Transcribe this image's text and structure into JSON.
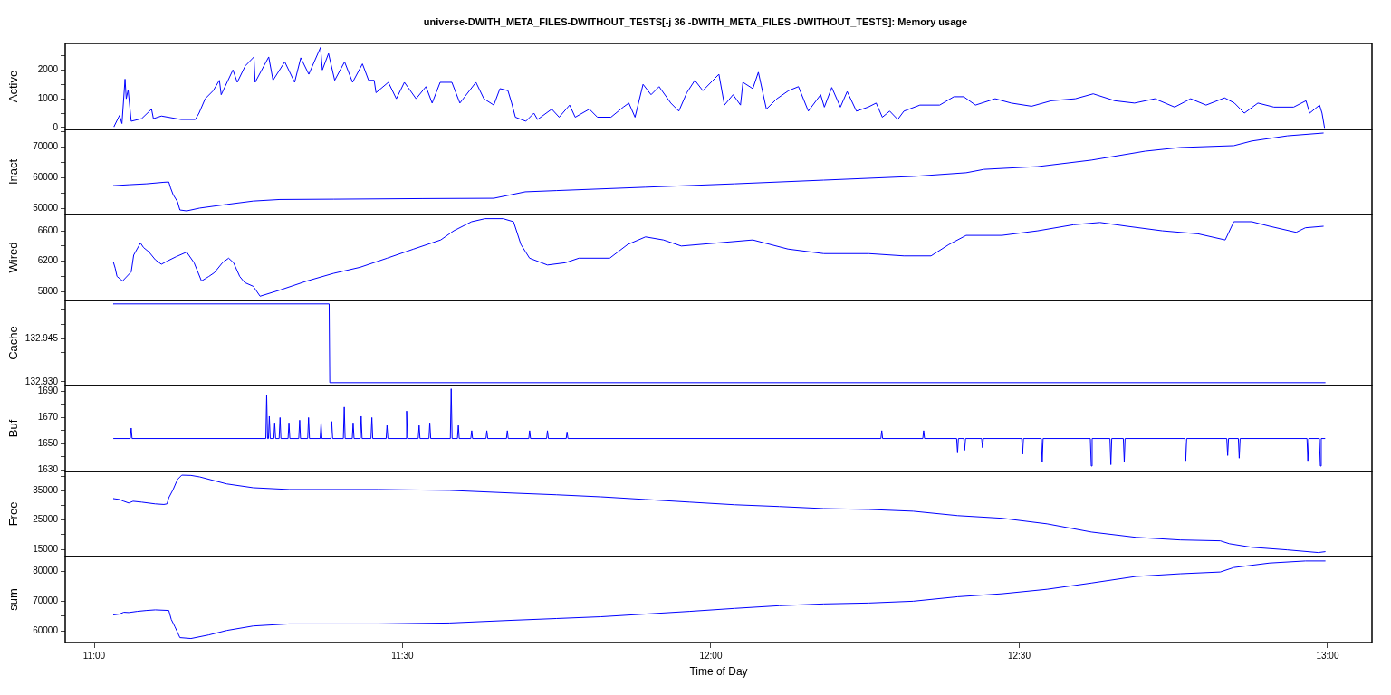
{
  "chart_data": [
    {
      "type": "line",
      "title": "universe-DWITH_META_FILES-DWITHOUT_TESTS[-j 36 -DWITH_META_FILES -DWITHOUT_TESTS]: Memory usage",
      "ylabel": "Active",
      "color": "#0000ff",
      "xlim": [
        10.953,
        13.072
      ],
      "ylim": [
        -64,
        2920
      ],
      "yticks": [
        0,
        {
          "value": 500,
          "label": null
        },
        1000,
        {
          "value": 1500,
          "label": null
        },
        2000,
        {
          "value": 2500,
          "label": null
        }
      ],
      "tick_labels": "y",
      "x": [
        11.032,
        11.041,
        11.045,
        11.05,
        11.052,
        11.055,
        11.06,
        11.077,
        11.093,
        11.096,
        11.109,
        11.141,
        11.164,
        11.17,
        11.18,
        11.193,
        11.203,
        11.206,
        11.225,
        11.232,
        11.245,
        11.259,
        11.261,
        11.283,
        11.29,
        11.309,
        11.325,
        11.335,
        11.348,
        11.367,
        11.37,
        11.38,
        11.39,
        11.406,
        11.419,
        11.435,
        11.445,
        11.454,
        11.457,
        11.477,
        11.49,
        11.503,
        11.522,
        11.538,
        11.548,
        11.561,
        11.58,
        11.593,
        11.619,
        11.632,
        11.648,
        11.658,
        11.671,
        11.677,
        11.683,
        11.7,
        11.713,
        11.719,
        11.742,
        11.754,
        11.771,
        11.78,
        11.803,
        11.816,
        11.838,
        11.858,
        11.867,
        11.877,
        11.89,
        11.903,
        11.916,
        11.935,
        11.948,
        11.961,
        11.974,
        11.987,
        12.013,
        12.022,
        12.036,
        12.048,
        12.052,
        12.068,
        12.077,
        12.09,
        12.107,
        12.126,
        12.142,
        12.158,
        12.178,
        12.184,
        12.196,
        12.21,
        12.221,
        12.236,
        12.255,
        12.268,
        12.278,
        12.29,
        12.303,
        12.313,
        12.339,
        12.371,
        12.394,
        12.41,
        12.429,
        12.461,
        12.487,
        12.52,
        12.552,
        12.591,
        12.62,
        12.655,
        12.687,
        12.72,
        12.752,
        12.778,
        12.803,
        12.833,
        12.849,
        12.865,
        12.887,
        12.913,
        12.945,
        12.965,
        12.971,
        12.987,
        12.991,
        12.995
      ],
      "values": [
        30,
        420,
        140,
        1680,
        1000,
        1310,
        220,
        310,
        640,
        310,
        400,
        280,
        280,
        500,
        1000,
        1280,
        1640,
        1140,
        2000,
        1570,
        2140,
        2450,
        1570,
        2450,
        1640,
        2280,
        1570,
        2420,
        1850,
        2780,
        2000,
        2570,
        1640,
        2280,
        1570,
        2210,
        1640,
        1640,
        1210,
        1570,
        1000,
        1570,
        1000,
        1420,
        850,
        1570,
        1570,
        850,
        1570,
        1000,
        780,
        1350,
        1280,
        850,
        360,
        220,
        500,
        280,
        640,
        360,
        780,
        360,
        640,
        360,
        360,
        710,
        850,
        360,
        1500,
        1140,
        1420,
        850,
        570,
        1210,
        1640,
        1280,
        1850,
        780,
        1140,
        780,
        1570,
        1350,
        1920,
        640,
        1000,
        1280,
        1420,
        570,
        1140,
        710,
        1390,
        710,
        1250,
        570,
        710,
        850,
        360,
        570,
        280,
        570,
        780,
        780,
        1070,
        1070,
        780,
        1000,
        850,
        740,
        930,
        1000,
        1170,
        930,
        850,
        1000,
        710,
        1000,
        780,
        1030,
        850,
        500,
        850,
        710,
        710,
        930,
        500,
        780,
        500,
        0
      ]
    },
    {
      "type": "line",
      "ylabel": "Inact",
      "color": "#0000ff",
      "xlim": [
        10.953,
        13.072
      ],
      "ylim": [
        48030,
        75680
      ],
      "yticks": [
        50000,
        {
          "value": 55000,
          "label": null
        },
        60000,
        {
          "value": 65000,
          "label": null
        },
        70000,
        {
          "value": 75000,
          "label": null
        }
      ],
      "tick_labels": "y",
      "x": [
        11.031,
        11.056,
        11.085,
        11.113,
        11.121,
        11.124,
        11.128,
        11.135,
        11.139,
        11.15,
        11.171,
        11.215,
        11.258,
        11.301,
        11.388,
        11.533,
        11.648,
        11.67,
        11.699,
        11.75,
        11.894,
        12.039,
        12.183,
        12.328,
        12.414,
        12.443,
        12.53,
        12.617,
        12.704,
        12.761,
        12.848,
        12.877,
        12.935,
        12.993
      ],
      "values": [
        57400,
        57700,
        58000,
        58500,
        58600,
        56600,
        54500,
        52200,
        49500,
        49200,
        50100,
        51300,
        52400,
        52900,
        53000,
        53200,
        53300,
        54200,
        55400,
        55800,
        56900,
        58000,
        59200,
        60400,
        61600,
        62700,
        63600,
        65700,
        68600,
        69800,
        70400,
        71900,
        73600,
        74500
      ]
    },
    {
      "type": "line",
      "ylabel": "Wired",
      "color": "#0000ff",
      "xlim": [
        10.953,
        13.072
      ],
      "ylim": [
        5684,
        6815
      ],
      "yticks": [
        5800,
        {
          "value": 6000,
          "label": null
        },
        6200,
        {
          "value": 6400,
          "label": null
        },
        6600
      ],
      "tick_labels": "y",
      "x": [
        11.031,
        11.034,
        11.037,
        11.046,
        11.06,
        11.064,
        11.075,
        11.08,
        11.089,
        11.099,
        11.109,
        11.118,
        11.133,
        11.15,
        11.162,
        11.174,
        11.186,
        11.195,
        11.208,
        11.218,
        11.226,
        11.236,
        11.244,
        11.258,
        11.269,
        11.301,
        11.345,
        11.388,
        11.431,
        11.475,
        11.518,
        11.562,
        11.583,
        11.612,
        11.634,
        11.663,
        11.68,
        11.692,
        11.706,
        11.735,
        11.764,
        11.786,
        11.836,
        11.865,
        11.894,
        11.923,
        11.952,
        12.01,
        12.068,
        12.125,
        12.183,
        12.256,
        12.313,
        12.357,
        12.386,
        12.414,
        12.472,
        12.53,
        12.588,
        12.631,
        12.675,
        12.732,
        12.79,
        12.834,
        12.848,
        12.877,
        12.906,
        12.949,
        12.964,
        12.993
      ],
      "values": [
        6190,
        6110,
        6000,
        5940,
        6060,
        6280,
        6440,
        6380,
        6320,
        6220,
        6160,
        6200,
        6260,
        6320,
        6180,
        5940,
        6000,
        6050,
        6180,
        6240,
        6180,
        6000,
        5920,
        5870,
        5740,
        5820,
        5940,
        6040,
        6120,
        6240,
        6360,
        6480,
        6600,
        6720,
        6760,
        6760,
        6720,
        6420,
        6240,
        6150,
        6180,
        6240,
        6240,
        6420,
        6520,
        6480,
        6400,
        6440,
        6480,
        6360,
        6300,
        6300,
        6270,
        6270,
        6420,
        6540,
        6540,
        6600,
        6680,
        6710,
        6660,
        6600,
        6560,
        6480,
        6720,
        6720,
        6660,
        6580,
        6640,
        6660
      ]
    },
    {
      "type": "line",
      "ylabel": "Cache",
      "color": "#0000ff",
      "xlim": [
        10.953,
        13.072
      ],
      "ylim": [
        132.9287,
        132.9582
      ],
      "yticks": [
        {
          "value": 132.93,
          "label": "132.930"
        },
        {
          "value": 132.935,
          "label": null
        },
        {
          "value": 132.94,
          "label": null
        },
        {
          "value": 132.945,
          "label": "132.945"
        },
        {
          "value": 132.95,
          "label": null
        },
        {
          "value": 132.955,
          "label": null
        }
      ],
      "tick_labels": "y",
      "x": [
        11.031,
        11.381,
        11.382,
        12.996
      ],
      "values": [
        132.957,
        132.957,
        132.9297,
        132.9297
      ]
    },
    {
      "type": "line",
      "ylabel": "Buf",
      "color": "#0000ff",
      "xlim": [
        10.953,
        13.072
      ],
      "ylim": [
        1628.8,
        1694.5
      ],
      "yticks": [
        1630,
        {
          "value": 1640,
          "label": null
        },
        1650,
        {
          "value": 1660,
          "label": null
        },
        1670,
        {
          "value": 1680,
          "label": null
        },
        1690
      ],
      "tick_labels": "y",
      "x": [
        11.0311,
        11.0585,
        11.06,
        11.0614,
        11.2783,
        11.2797,
        11.2811,
        11.2826,
        11.284,
        11.2855,
        11.2913,
        11.2927,
        11.2942,
        11.2999,
        11.3014,
        11.3028,
        11.3144,
        11.3158,
        11.3173,
        11.3317,
        11.3332,
        11.3346,
        11.3462,
        11.3476,
        11.3491,
        11.3664,
        11.3679,
        11.3693,
        11.3838,
        11.3852,
        11.3867,
        11.404,
        11.4055,
        11.4069,
        11.4185,
        11.4199,
        11.4214,
        11.4315,
        11.4329,
        11.4344,
        11.4488,
        11.4503,
        11.4517,
        11.4734,
        11.4748,
        11.4763,
        11.5052,
        11.5066,
        11.5081,
        11.5254,
        11.5269,
        11.5283,
        11.5428,
        11.5442,
        11.5457,
        11.5775,
        11.5789,
        11.5804,
        11.589,
        11.5905,
        11.5919,
        11.6107,
        11.6122,
        11.6136,
        11.6353,
        11.6367,
        11.6382,
        11.6685,
        11.67,
        11.6714,
        11.7047,
        11.7061,
        11.7076,
        11.7336,
        11.735,
        11.7365,
        11.7654,
        11.7668,
        11.7683,
        12.2757,
        12.2771,
        12.2785,
        12.3436,
        12.345,
        12.3465,
        12.3985,
        12.4,
        12.4014,
        12.4101,
        12.4115,
        12.413,
        12.439,
        12.4404,
        12.4419,
        12.504,
        12.5055,
        12.5069,
        12.5358,
        12.5373,
        12.5387,
        12.6153,
        12.6168,
        12.6182,
        12.6471,
        12.6486,
        12.65,
        12.6688,
        12.6703,
        12.6717,
        12.7686,
        12.77,
        12.7715,
        12.8365,
        12.838,
        12.8394,
        12.8553,
        12.8567,
        12.8582,
        12.9666,
        12.968,
        12.9695,
        12.9868,
        12.9883,
        12.9897,
        12.9955
      ],
      "values": [
        1654,
        1654,
        1662,
        1654,
        1654,
        1687,
        1654,
        1654,
        1671,
        1654,
        1654,
        1666,
        1654,
        1654,
        1670,
        1654,
        1654,
        1666,
        1654,
        1654,
        1668,
        1654,
        1654,
        1670,
        1654,
        1654,
        1666,
        1654,
        1654,
        1667,
        1654,
        1654,
        1678,
        1654,
        1654,
        1666,
        1654,
        1654,
        1671,
        1654,
        1654,
        1670,
        1654,
        1654,
        1664,
        1654,
        1654,
        1675,
        1654,
        1654,
        1664,
        1654,
        1654,
        1666,
        1654,
        1654,
        1692,
        1654,
        1654,
        1664,
        1654,
        1654,
        1660,
        1654,
        1654,
        1660,
        1654,
        1654,
        1660,
        1654,
        1654,
        1660,
        1654,
        1654,
        1660,
        1654,
        1654,
        1659,
        1654,
        1654,
        1660,
        1654,
        1654,
        1660,
        1654,
        1654,
        1643,
        1654,
        1654,
        1645,
        1654,
        1654,
        1647,
        1654,
        1654,
        1642,
        1654,
        1654,
        1636,
        1654,
        1654,
        1633,
        1654,
        1654,
        1634,
        1654,
        1654,
        1636,
        1654,
        1654,
        1637,
        1654,
        1654,
        1641,
        1654,
        1654,
        1639,
        1654,
        1654,
        1637,
        1654,
        1654,
        1633,
        1654,
        1654
      ]
    },
    {
      "type": "line",
      "ylabel": "Free",
      "color": "#0000ff",
      "xlim": [
        10.953,
        13.072
      ],
      "ylim": [
        12540,
        41550
      ],
      "yticks": [
        15000,
        {
          "value": 20000,
          "label": null
        },
        25000,
        {
          "value": 30000,
          "label": null
        },
        35000,
        {
          "value": 40000,
          "label": null
        }
      ],
      "tick_labels": "y",
      "x": [
        11.031,
        11.041,
        11.048,
        11.056,
        11.063,
        11.077,
        11.099,
        11.113,
        11.118,
        11.121,
        11.128,
        11.135,
        11.142,
        11.157,
        11.171,
        11.215,
        11.258,
        11.316,
        11.46,
        11.576,
        11.677,
        11.75,
        11.822,
        11.894,
        11.966,
        12.039,
        12.111,
        12.183,
        12.256,
        12.328,
        12.4,
        12.472,
        12.545,
        12.617,
        12.689,
        12.761,
        12.826,
        12.841,
        12.877,
        12.935,
        12.985,
        12.996
      ],
      "values": [
        32300,
        32000,
        31400,
        30800,
        31400,
        31100,
        30500,
        30300,
        30500,
        32600,
        35400,
        38800,
        40300,
        40200,
        39700,
        37300,
        36000,
        35400,
        35400,
        35100,
        34200,
        33600,
        32900,
        32000,
        31100,
        30200,
        29600,
        28900,
        28600,
        28000,
        26500,
        25600,
        23700,
        20900,
        19100,
        18200,
        17900,
        16900,
        15700,
        14800,
        13900,
        14200
      ]
    },
    {
      "type": "line",
      "ylabel": "sum",
      "xlabel": "Time of Day",
      "color": "#0000ff",
      "xlim": [
        10.953,
        13.072
      ],
      "ylim": [
        56150,
        84985
      ],
      "yticks": [
        60000,
        {
          "value": 65000,
          "label": null
        },
        70000,
        {
          "value": 75000,
          "label": null
        },
        80000
      ],
      "xticks": [
        {
          "value": 11,
          "label": "11:00"
        },
        {
          "value": 11.5,
          "label": "11:30"
        },
        {
          "value": 12,
          "label": "12:00"
        },
        {
          "value": 12.5,
          "label": "12:30"
        },
        {
          "value": 13,
          "label": "13:00"
        }
      ],
      "x": [
        11.031,
        11.041,
        11.048,
        11.056,
        11.07,
        11.085,
        11.099,
        11.121,
        11.125,
        11.131,
        11.139,
        11.157,
        11.186,
        11.215,
        11.258,
        11.316,
        11.46,
        11.576,
        11.677,
        11.75,
        11.822,
        11.894,
        11.966,
        12.039,
        12.111,
        12.183,
        12.256,
        12.328,
        12.4,
        12.472,
        12.545,
        12.617,
        12.689,
        12.761,
        12.826,
        12.848,
        12.906,
        12.964,
        12.996
      ],
      "values": [
        65400,
        65700,
        66300,
        66200,
        66600,
        66900,
        67100,
        66900,
        63900,
        61400,
        57800,
        57500,
        58700,
        60200,
        61700,
        62400,
        62400,
        62700,
        63600,
        64200,
        64800,
        65700,
        66600,
        67600,
        68500,
        69100,
        69400,
        70000,
        71500,
        72500,
        74000,
        76100,
        78300,
        79200,
        79800,
        81300,
        82800,
        83500,
        83500
      ]
    }
  ]
}
